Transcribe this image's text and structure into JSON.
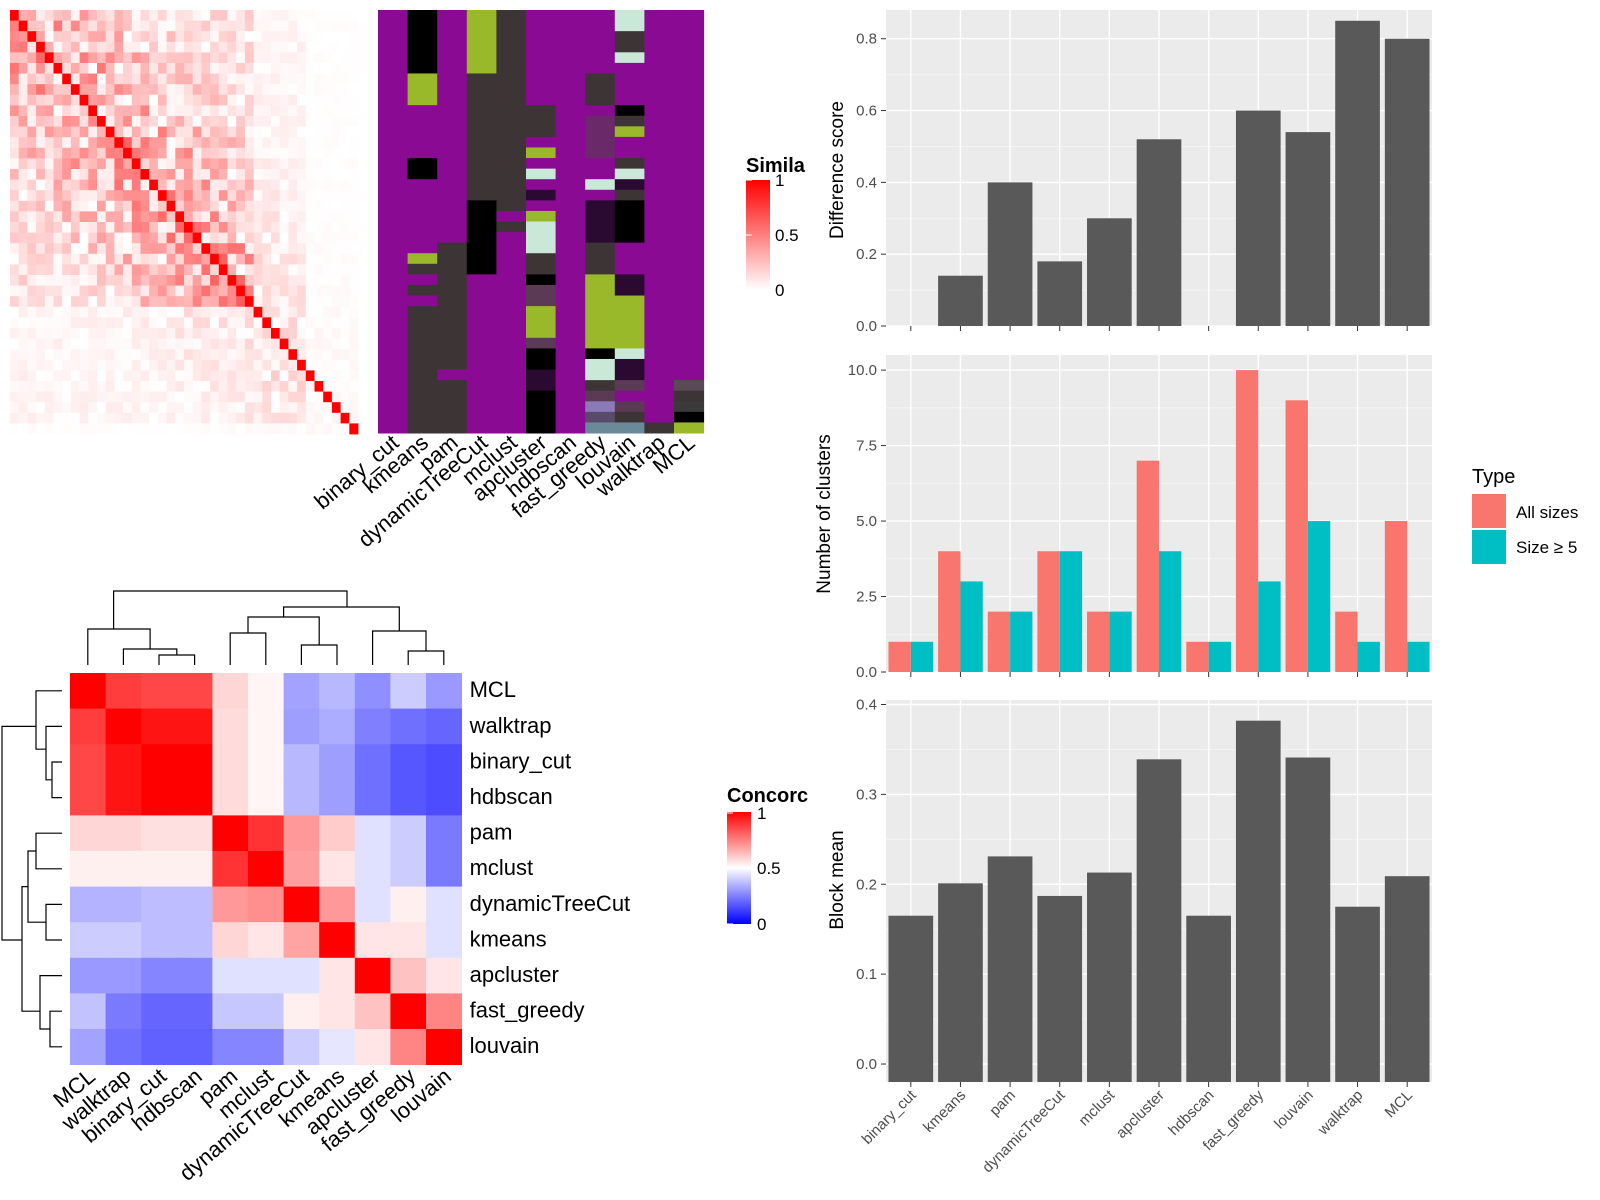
{
  "chart_data": [
    {
      "id": "similarity_heatmap",
      "type": "heatmap",
      "legend": {
        "title": "Simila",
        "ticks": [
          "1",
          "0.5",
          "0"
        ],
        "low_color": "#ffffff",
        "high_color": "#ff0000"
      }
    },
    {
      "id": "cluster_assignment_heatmap",
      "type": "heatmap",
      "columns": [
        "binary_cut",
        "kmeans",
        "pam",
        "dynamicTreeCut",
        "mclust",
        "apcluster",
        "hdbscan",
        "fast_greedy",
        "louvain",
        "walktrap",
        "MCL"
      ]
    },
    {
      "id": "concordance_heatmap",
      "type": "heatmap",
      "row_labels": [
        "MCL",
        "walktrap",
        "binary_cut",
        "hdbscan",
        "pam",
        "mclust",
        "dynamicTreeCut",
        "kmeans",
        "apcluster",
        "fast_greedy",
        "louvain"
      ],
      "column_labels": [
        "MCL",
        "walktrap",
        "binary_cut",
        "hdbscan",
        "pam",
        "mclust",
        "dynamicTreeCut",
        "kmeans",
        "apcluster",
        "fast_greedy",
        "louvain"
      ],
      "values": [
        [
          1.0,
          0.88,
          0.86,
          0.86,
          0.58,
          0.52,
          0.32,
          0.36,
          0.28,
          0.4,
          0.3
        ],
        [
          0.88,
          1.0,
          0.96,
          0.96,
          0.57,
          0.52,
          0.31,
          0.34,
          0.25,
          0.22,
          0.2
        ],
        [
          0.86,
          0.96,
          1.0,
          1.0,
          0.57,
          0.52,
          0.36,
          0.31,
          0.22,
          0.17,
          0.15
        ],
        [
          0.86,
          0.96,
          1.0,
          1.0,
          0.57,
          0.52,
          0.36,
          0.31,
          0.22,
          0.17,
          0.15
        ],
        [
          0.58,
          0.58,
          0.56,
          0.56,
          1.0,
          0.9,
          0.7,
          0.6,
          0.44,
          0.4,
          0.24
        ],
        [
          0.53,
          0.53,
          0.53,
          0.53,
          0.9,
          1.0,
          0.69,
          0.55,
          0.44,
          0.4,
          0.24
        ],
        [
          0.35,
          0.35,
          0.37,
          0.37,
          0.7,
          0.72,
          1.0,
          0.7,
          0.44,
          0.53,
          0.44
        ],
        [
          0.4,
          0.4,
          0.37,
          0.37,
          0.58,
          0.55,
          0.68,
          1.0,
          0.55,
          0.55,
          0.44
        ],
        [
          0.3,
          0.3,
          0.26,
          0.26,
          0.44,
          0.44,
          0.44,
          0.55,
          1.0,
          0.62,
          0.55
        ],
        [
          0.38,
          0.24,
          0.2,
          0.2,
          0.39,
          0.39,
          0.53,
          0.55,
          0.62,
          1.0,
          0.74
        ],
        [
          0.32,
          0.22,
          0.19,
          0.19,
          0.26,
          0.26,
          0.4,
          0.45,
          0.55,
          0.74,
          1.0
        ]
      ],
      "legend": {
        "title": "Concorc",
        "ticks": [
          "1",
          "0.5",
          "0"
        ],
        "low_color": "#0000ff",
        "mid_color": "#ffffff",
        "high_color": "#ff0000"
      }
    },
    {
      "id": "difference_score",
      "type": "bar",
      "categories": [
        "binary_cut",
        "kmeans",
        "pam",
        "dynamicTreeCut",
        "mclust",
        "apcluster",
        "hdbscan",
        "fast_greedy",
        "louvain",
        "walktrap",
        "MCL"
      ],
      "values": [
        0,
        0.14,
        0.4,
        0.18,
        0.3,
        0.52,
        0,
        0.6,
        0.54,
        0.85,
        0.8
      ],
      "ylabel": "Difference score",
      "ylim": [
        0,
        0.88
      ],
      "yticks": [
        "0.0",
        "0.2",
        "0.4",
        "0.6",
        "0.8"
      ],
      "bar_color": "#595959"
    },
    {
      "id": "number_of_clusters",
      "type": "bar",
      "categories": [
        "binary_cut",
        "kmeans",
        "pam",
        "dynamicTreeCut",
        "mclust",
        "apcluster",
        "hdbscan",
        "fast_greedy",
        "louvain",
        "walktrap",
        "MCL"
      ],
      "series": [
        {
          "name": "All sizes",
          "color": "#f8766d",
          "values": [
            1,
            4,
            2,
            4,
            2,
            7,
            1,
            10,
            9,
            2,
            5
          ]
        },
        {
          "name": "Size ≥ 5",
          "color": "#00bfc4",
          "values": [
            1,
            3,
            2,
            4,
            2,
            4,
            1,
            3,
            5,
            1,
            1
          ]
        }
      ],
      "ylabel": "Number of clusters",
      "ylim": [
        0,
        10.5
      ],
      "yticks": [
        "0.0",
        "2.5",
        "5.0",
        "7.5",
        "10.0"
      ],
      "legend": {
        "title": "Type",
        "position": "right"
      }
    },
    {
      "id": "block_mean",
      "type": "bar",
      "categories": [
        "binary_cut",
        "kmeans",
        "pam",
        "dynamicTreeCut",
        "mclust",
        "apcluster",
        "hdbscan",
        "fast_greedy",
        "louvain",
        "walktrap",
        "MCL"
      ],
      "values": [
        0.165,
        0.201,
        0.231,
        0.187,
        0.213,
        0.339,
        0.165,
        0.382,
        0.341,
        0.175,
        0.209
      ],
      "ylabel": "Block mean",
      "ylim": [
        0,
        0.4
      ],
      "yticks": [
        "0.0",
        "0.1",
        "0.2",
        "0.3",
        "0.4"
      ],
      "bar_color": "#595959"
    }
  ]
}
